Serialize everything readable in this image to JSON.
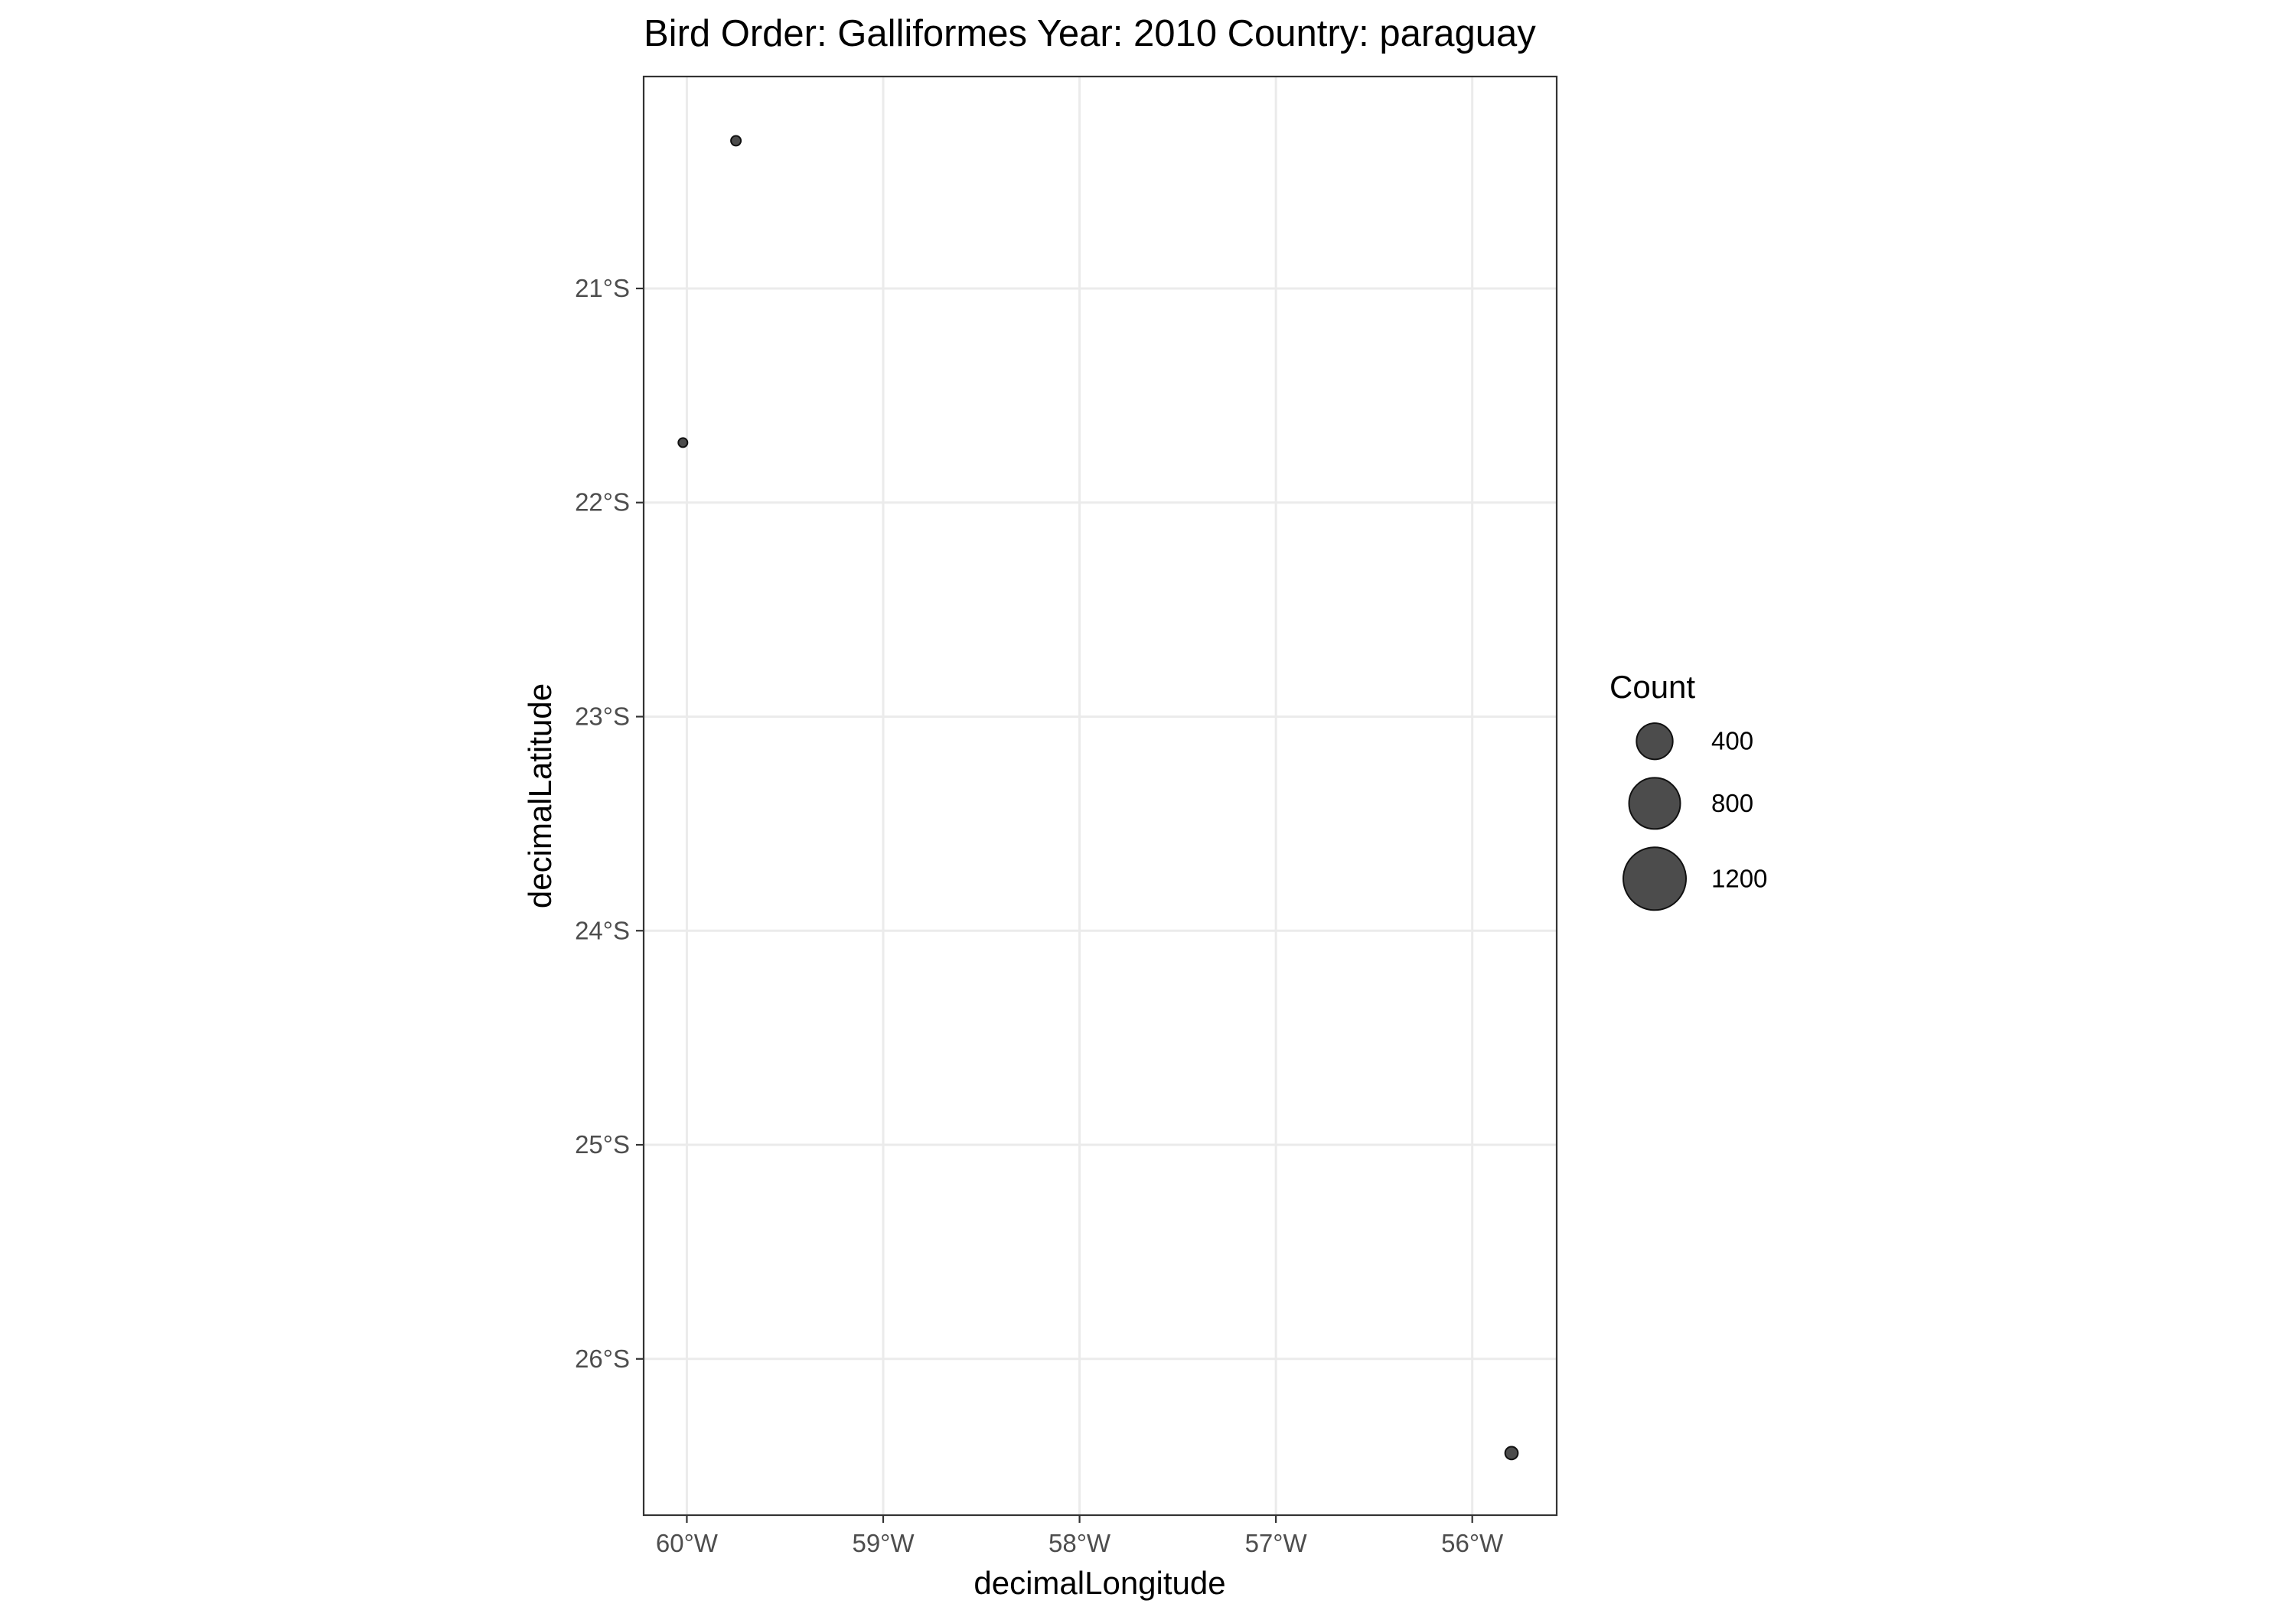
{
  "chart_data": {
    "type": "scatter",
    "title": "Bird Order: Galliformes Year: 2010 Country: paraguay",
    "xlabel": "decimalLongitude",
    "ylabel": "decimalLatitude",
    "xlim": [
      -60.22,
      -55.57
    ],
    "ylim": [
      -26.73,
      -20.01
    ],
    "x_ticks": [
      {
        "value": -60,
        "label": "60°W"
      },
      {
        "value": -59,
        "label": "59°W"
      },
      {
        "value": -58,
        "label": "58°W"
      },
      {
        "value": -57,
        "label": "57°W"
      },
      {
        "value": -56,
        "label": "56°W"
      }
    ],
    "y_ticks": [
      {
        "value": -21,
        "label": "21°S"
      },
      {
        "value": -22,
        "label": "22°S"
      },
      {
        "value": -23,
        "label": "23°S"
      },
      {
        "value": -24,
        "label": "24°S"
      },
      {
        "value": -25,
        "label": "25°S"
      },
      {
        "value": -26,
        "label": "26°S"
      }
    ],
    "points": [
      {
        "x": -59.75,
        "y": -20.31,
        "count": 30
      },
      {
        "x": -60.02,
        "y": -21.72,
        "count": 15
      },
      {
        "x": -55.8,
        "y": -26.44,
        "count": 50
      }
    ],
    "size_legend": {
      "title": "Count",
      "entries": [
        {
          "value": 400,
          "label": "400"
        },
        {
          "value": 800,
          "label": "800"
        },
        {
          "value": 1200,
          "label": "1200"
        }
      ],
      "placement": "right"
    },
    "grid": true,
    "point_color": "#333333",
    "point_opacity": 0.88
  }
}
